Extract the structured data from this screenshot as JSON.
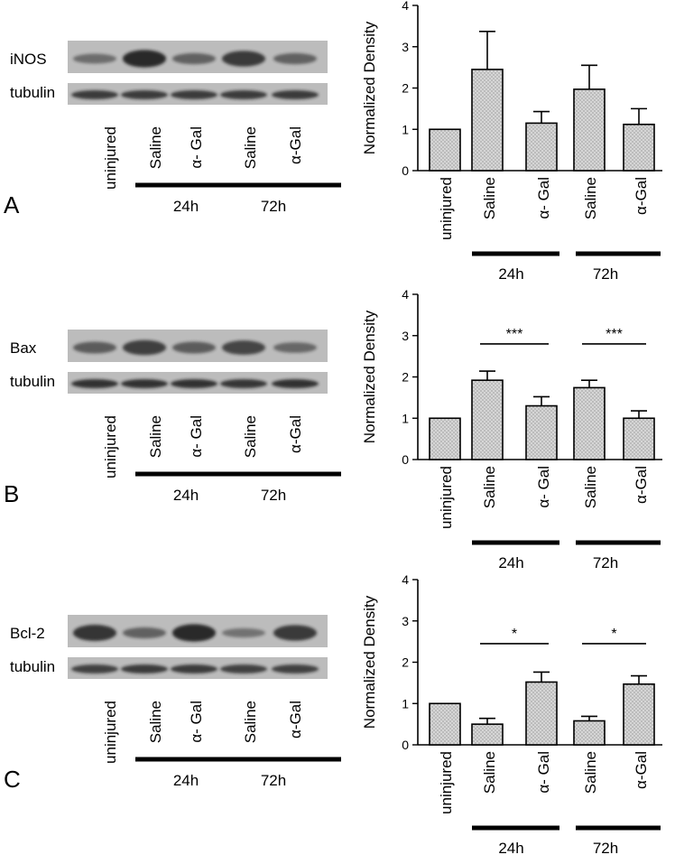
{
  "colors": {
    "bar_fill": "#d6d6d6",
    "ink": "#000000",
    "blot_bg": "#bcbcbc",
    "band": "#1e1e1e"
  },
  "panels": [
    {
      "letter": "A",
      "blot": {
        "protein_label": "iNOS",
        "loading_label": "tubulin",
        "lanes": [
          "uninjured",
          "Saline",
          "α- Gal",
          "Saline",
          "α-Gal"
        ],
        "protein_intensity": [
          0.35,
          0.95,
          0.45,
          0.8,
          0.45
        ],
        "loading_intensity": [
          0.85,
          0.85,
          0.85,
          0.85,
          0.85
        ],
        "groups": [
          "24h",
          "72h"
        ]
      },
      "chart": {
        "type": "bar",
        "ylabel": "Normalized Density",
        "ylim": [
          0,
          4
        ],
        "yticks": [
          "0",
          "1",
          "2",
          "3",
          "4"
        ],
        "categories": [
          "uninjured",
          "Saline",
          "α- Gal",
          "Saline",
          "α-Gal"
        ],
        "values": [
          1.0,
          2.45,
          1.15,
          1.97,
          1.12
        ],
        "errors": [
          0,
          0.92,
          0.28,
          0.58,
          0.38
        ],
        "groups": [
          "24h",
          "72h"
        ],
        "sig": []
      }
    },
    {
      "letter": "B",
      "blot": {
        "protein_label": "Bax",
        "loading_label": "tubulin",
        "lanes": [
          "uninjured",
          "Saline",
          "α- Gal",
          "Saline",
          "α-Gal"
        ],
        "protein_intensity": [
          0.5,
          0.75,
          0.5,
          0.7,
          0.4
        ],
        "loading_intensity": [
          0.95,
          0.95,
          0.95,
          0.9,
          0.95
        ],
        "groups": [
          "24h",
          "72h"
        ]
      },
      "chart": {
        "type": "bar",
        "ylabel": "Normalized Density",
        "ylim": [
          0,
          4
        ],
        "yticks": [
          "0",
          "1",
          "2",
          "3",
          "4"
        ],
        "categories": [
          "uninjured",
          "Saline",
          "α- Gal",
          "Saline",
          "α-Gal"
        ],
        "values": [
          1.0,
          1.92,
          1.3,
          1.74,
          1.0
        ],
        "errors": [
          0,
          0.22,
          0.22,
          0.18,
          0.18
        ],
        "groups": [
          "24h",
          "72h"
        ],
        "sig": [
          {
            "from": 1,
            "to": 2,
            "label": "***",
            "y": 2.8
          },
          {
            "from": 3,
            "to": 4,
            "label": "***",
            "y": 2.8
          }
        ]
      }
    },
    {
      "letter": "C",
      "blot": {
        "protein_label": "Bcl-2",
        "loading_label": "tubulin",
        "lanes": [
          "uninjured",
          "Saline",
          "α- Gal",
          "Saline",
          "α-Gal"
        ],
        "protein_intensity": [
          0.85,
          0.45,
          0.95,
          0.3,
          0.8
        ],
        "loading_intensity": [
          0.8,
          0.85,
          0.85,
          0.8,
          0.8
        ],
        "groups": [
          "24h",
          "72h"
        ]
      },
      "chart": {
        "type": "bar",
        "ylabel": "Normalized Density",
        "ylim": [
          0,
          4
        ],
        "yticks": [
          "0",
          "1",
          "2",
          "3",
          "4"
        ],
        "categories": [
          "uninjured",
          "Saline",
          "α- Gal",
          "Saline",
          "α-Gal"
        ],
        "values": [
          1.0,
          0.5,
          1.52,
          0.58,
          1.47
        ],
        "errors": [
          0,
          0.14,
          0.24,
          0.11,
          0.2
        ],
        "groups": [
          "24h",
          "72h"
        ],
        "sig": [
          {
            "from": 1,
            "to": 2,
            "label": "*",
            "y": 2.45
          },
          {
            "from": 3,
            "to": 4,
            "label": "*",
            "y": 2.45
          }
        ]
      }
    }
  ]
}
